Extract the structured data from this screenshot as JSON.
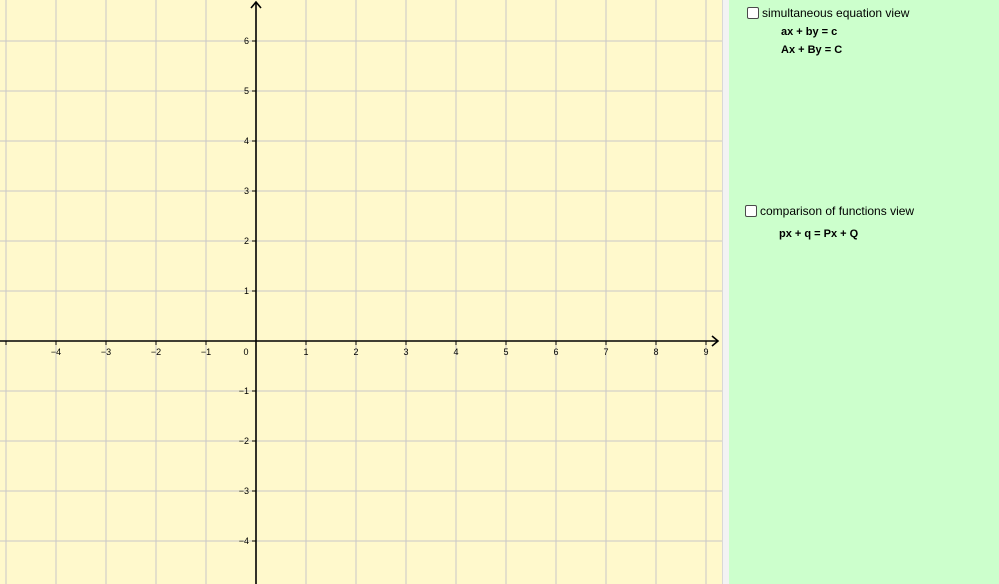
{
  "colors": {
    "graph_background": "#fff9cc",
    "side_panel_background": "#ccffcc",
    "grid_line": "#c8c8c8",
    "axis": "#000000"
  },
  "graph": {
    "x_range": [
      -5.1,
      9.3
    ],
    "y_range": [
      -4.8,
      6.8
    ],
    "grid_step": 1,
    "axis_arrows": true,
    "x_tick_labels": [
      "−4",
      "−3",
      "−2",
      "−1",
      "0",
      "1",
      "2",
      "3",
      "4",
      "5",
      "6",
      "7",
      "8",
      "9"
    ],
    "y_tick_labels": [
      "6",
      "5",
      "4",
      "3",
      "2",
      "1",
      "−1",
      "−2",
      "−3",
      "−4"
    ]
  },
  "side_panel": {
    "simultaneous": {
      "checkbox_label": "simultaneous equation view",
      "checked": false,
      "equation_1": "ax + by = c",
      "equation_2": "Ax + By = C"
    },
    "comparison": {
      "checkbox_label": "comparison of functions view",
      "checked": false,
      "equation": "px + q = Px + Q"
    }
  }
}
